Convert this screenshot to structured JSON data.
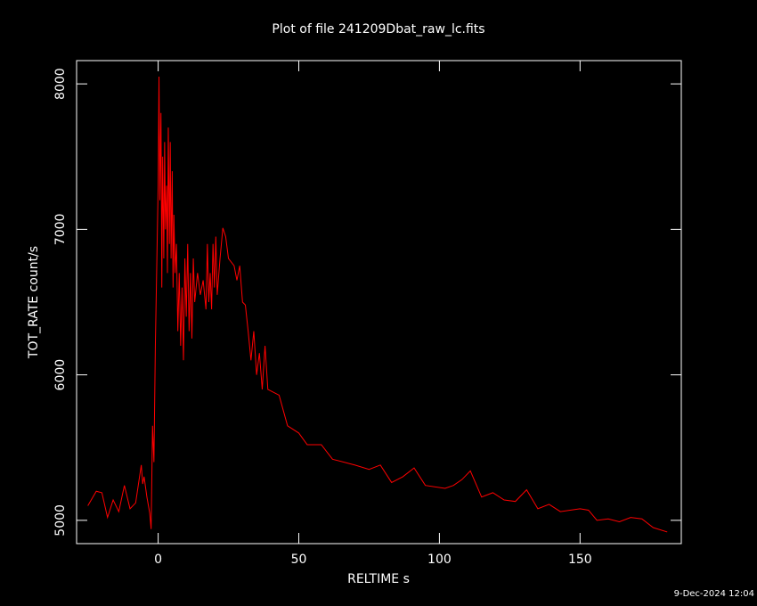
{
  "chart_data": {
    "type": "line",
    "title": "Plot of file 241209Dbat_raw_lc.fits",
    "x_label": "RELTIME  s",
    "y_label": "TOT_RATE  count/s",
    "footer": "9-Dec-2024 12:04",
    "color": "#ff0000",
    "xlim": [
      -29,
      186
    ],
    "ylim": [
      4840,
      8160
    ],
    "xticks": [
      0,
      50,
      100,
      150
    ],
    "yticks": [
      5000,
      6000,
      7000,
      8000
    ],
    "x": [
      -25,
      -22,
      -20,
      -18,
      -16,
      -14,
      -12,
      -10,
      -8,
      -6,
      -5.5,
      -5,
      -4,
      -3,
      -2.5,
      -2,
      -1.5,
      -1,
      0,
      0.3,
      0.6,
      1,
      1.3,
      1.6,
      2,
      2.3,
      2.6,
      3,
      3.3,
      3.6,
      4,
      4.3,
      4.6,
      5,
      5.3,
      5.6,
      6,
      6.5,
      7,
      7.5,
      8,
      8.5,
      9,
      9.5,
      10,
      10.5,
      11,
      11.5,
      12,
      12.5,
      13,
      14,
      15,
      16,
      17,
      17.5,
      18,
      18.5,
      19,
      19.5,
      20,
      20.5,
      21,
      22,
      23,
      24,
      25,
      27,
      28,
      29,
      30,
      31,
      32,
      33,
      34,
      35,
      36,
      37,
      38,
      39,
      43,
      46,
      50,
      53,
      58,
      62,
      70,
      75,
      79,
      83,
      87,
      91,
      95,
      102,
      105,
      108,
      111,
      115,
      119,
      123,
      127,
      131,
      135,
      139,
      143,
      150,
      153,
      156,
      160,
      164,
      168,
      172,
      176,
      181
    ],
    "values": [
      5100,
      5200,
      5190,
      5020,
      5140,
      5060,
      5240,
      5080,
      5120,
      5380,
      5250,
      5300,
      5160,
      5050,
      4940,
      5650,
      5400,
      6200,
      7300,
      8050,
      7200,
      7800,
      6600,
      7500,
      6800,
      7600,
      7000,
      7300,
      6700,
      7700,
      6900,
      7600,
      6800,
      7400,
      6600,
      7100,
      6700,
      6900,
      6300,
      6700,
      6200,
      6600,
      6100,
      6800,
      6400,
      6900,
      6300,
      6700,
      6250,
      6800,
      6500,
      6700,
      6550,
      6650,
      6450,
      6900,
      6500,
      6700,
      6450,
      6900,
      6600,
      6950,
      6550,
      6800,
      7010,
      6950,
      6800,
      6750,
      6650,
      6750,
      6500,
      6480,
      6300,
      6100,
      6300,
      6000,
      6150,
      5900,
      6200,
      5900,
      5860,
      5650,
      5600,
      5520,
      5520,
      5420,
      5380,
      5350,
      5380,
      5260,
      5300,
      5360,
      5240,
      5220,
      5240,
      5280,
      5340,
      5160,
      5190,
      5140,
      5130,
      5210,
      5080,
      5110,
      5060,
      5080,
      5070,
      5000,
      5010,
      4990,
      5020,
      5010,
      4950,
      4920
    ]
  }
}
